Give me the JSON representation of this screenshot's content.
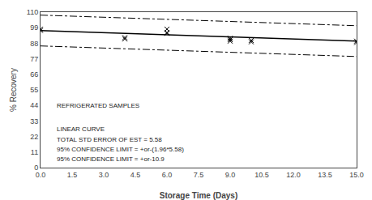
{
  "chart_data": {
    "type": "line",
    "xlabel": "Storage Time (Days)",
    "ylabel": "% Recovery",
    "xlim": [
      0,
      15
    ],
    "ylim": [
      0,
      110
    ],
    "xticks": [
      {
        "value": 0,
        "label": "0.0"
      },
      1.5,
      {
        "value": 3,
        "label": "3.0"
      },
      4.5,
      {
        "value": 6,
        "label": "6.0"
      },
      7.5,
      {
        "value": 9,
        "label": "9.0"
      },
      10.5,
      {
        "value": 12,
        "label": "12.0"
      },
      13.5,
      {
        "value": 15,
        "label": "15.0"
      }
    ],
    "yticks": [
      0,
      11,
      22,
      33,
      44,
      55,
      66,
      77,
      88,
      99,
      110
    ],
    "grid": false,
    "series": [
      {
        "type": "line",
        "line_style": "dashdot",
        "color": "black",
        "x": [
          0,
          15
        ],
        "values": [
          107.9,
          100.4
        ]
      },
      {
        "type": "line",
        "line_style": "dashdot",
        "color": "black",
        "x": [
          0,
          15
        ],
        "values": [
          86.1,
          78.6
        ]
      },
      {
        "type": "line",
        "line_style": "solid",
        "color": "black",
        "x": [
          0,
          15
        ],
        "values": [
          97.0,
          89.5
        ]
      },
      {
        "type": "scatter",
        "marker": "x",
        "color": "black",
        "x": [
          0,
          0,
          4,
          4,
          6,
          6,
          6,
          9,
          9,
          9,
          10,
          10,
          15,
          15
        ],
        "values": [
          98.0,
          97.0,
          92.0,
          91.0,
          98.0,
          95.5,
          95.0,
          91.5,
          90.5,
          89.5,
          90.0,
          89.0,
          89.5,
          88.5
        ]
      }
    ],
    "annotations": [
      "REFRIGERATED SAMPLES",
      "LINEAR CURVE",
      "TOTAL STD ERROR OF EST = 5.58",
      "95% CONFIDENCE LIMIT = +or-(1.96*5.58)",
      "95% CONFIDENCE LIMIT = +or-10.9"
    ]
  }
}
